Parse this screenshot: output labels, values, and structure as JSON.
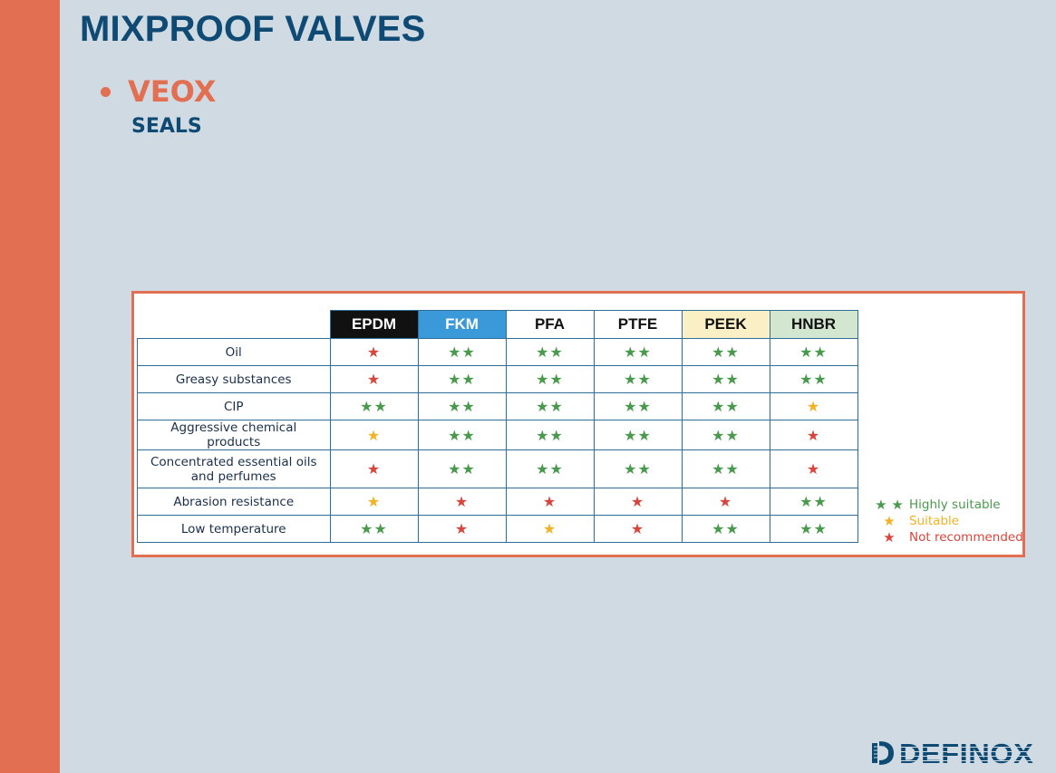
{
  "slide": {
    "title": "MIXPROOF VALVES",
    "subtitle": "VEOX",
    "subheading": "SEALS"
  },
  "colors": {
    "accent": "#e36f53",
    "title": "#0e4a73",
    "highly_suitable": "#4a9a4e",
    "suitable": "#f2b224",
    "not_recommended": "#d8453c"
  },
  "table": {
    "columns": [
      {
        "label": "EPDM",
        "bg": "#111111",
        "fg": "#ffffff"
      },
      {
        "label": "FKM",
        "bg": "#3a9ad9",
        "fg": "#ffffff"
      },
      {
        "label": "PFA",
        "bg": "#ffffff",
        "fg": "#111111"
      },
      {
        "label": "PTFE",
        "bg": "#ffffff",
        "fg": "#111111"
      },
      {
        "label": "PEEK",
        "bg": "#fbefc6",
        "fg": "#111111"
      },
      {
        "label": "HNBR",
        "bg": "#d3e6cf",
        "fg": "#111111"
      }
    ],
    "rows": [
      {
        "label": "Oil",
        "ratings": [
          "R",
          "HS",
          "HS",
          "HS",
          "HS",
          "HS"
        ]
      },
      {
        "label": "Greasy substances",
        "ratings": [
          "R",
          "HS",
          "HS",
          "HS",
          "HS",
          "HS"
        ]
      },
      {
        "label": "CIP",
        "ratings": [
          "HS",
          "HS",
          "HS",
          "HS",
          "HS",
          "S"
        ]
      },
      {
        "label": "Aggressive chemical products",
        "ratings": [
          "S",
          "HS",
          "HS",
          "HS",
          "HS",
          "R"
        ]
      },
      {
        "label": "Concentrated essential oils and perfumes",
        "ratings": [
          "R",
          "HS",
          "HS",
          "HS",
          "HS",
          "R"
        ]
      },
      {
        "label": "Abrasion resistance",
        "ratings": [
          "S",
          "R",
          "R",
          "R",
          "R",
          "HS"
        ]
      },
      {
        "label": "Low temperature",
        "ratings": [
          "HS",
          "R",
          "S",
          "R",
          "HS",
          "HS"
        ]
      }
    ]
  },
  "legend": [
    {
      "stars": "★ ★",
      "label": "Highly suitable",
      "color": "#4a9a4e"
    },
    {
      "stars": "★",
      "label": "Suitable",
      "color": "#f2b224"
    },
    {
      "stars": "★",
      "label": "Not recommended",
      "color": "#d8453c"
    }
  ],
  "logo": {
    "text": "DEFINOX",
    "icon": "definox-logo-icon"
  }
}
